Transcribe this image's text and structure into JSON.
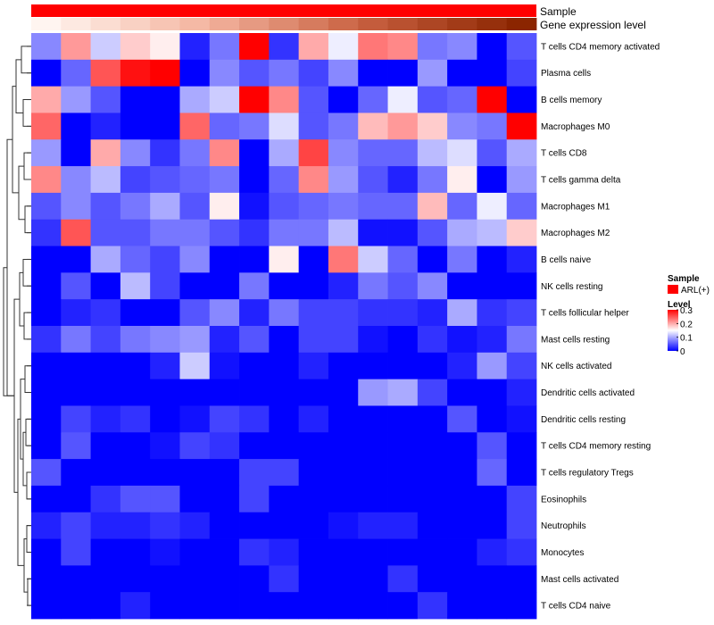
{
  "chart_data": {
    "type": "heatmap",
    "annotation_tracks": [
      {
        "name": "Sample",
        "kind": "categorical",
        "color": "#ff0000"
      },
      {
        "name": "Gene expression level",
        "kind": "gradient",
        "colors": [
          "#fff5f0",
          "#f4b5a0",
          "#c86040",
          "#8b2500"
        ]
      }
    ],
    "rows": [
      "T cells CD4 memory activated",
      "Plasma cells",
      "B cells memory",
      "Macrophages M0",
      "T cells CD8",
      "T cells gamma delta",
      "Macrophages M1",
      "Macrophages M2",
      "B cells naive",
      "NK cells resting",
      "T cells follicular helper",
      "Mast cells resting",
      "NK cells activated",
      "Dendritic cells activated",
      "Dendritic cells resting",
      "T cells CD4 memory resting",
      "T cells regulatory  Tregs",
      "Eosinophils",
      "Neutrophils",
      "Monocytes",
      "Mast cells activated",
      "T cells CD4 naive"
    ],
    "values": [
      [
        0.08,
        0.21,
        0.12,
        0.18,
        0.16,
        0.02,
        0.07,
        0.3,
        0.03,
        0.2,
        0.14,
        0.23,
        0.22,
        0.07,
        0.08,
        0.0,
        0.05
      ],
      [
        0.0,
        0.06,
        0.25,
        0.29,
        0.3,
        0.0,
        0.08,
        0.05,
        0.07,
        0.04,
        0.08,
        0.0,
        0.0,
        0.09,
        0.0,
        0.0,
        0.04
      ],
      [
        0.2,
        0.09,
        0.05,
        0.0,
        0.0,
        0.1,
        0.12,
        0.3,
        0.22,
        0.05,
        0.0,
        0.06,
        0.14,
        0.05,
        0.06,
        0.3,
        0.0
      ],
      [
        0.24,
        0.0,
        0.02,
        0.0,
        0.0,
        0.24,
        0.06,
        0.07,
        0.13,
        0.05,
        0.07,
        0.19,
        0.21,
        0.18,
        0.08,
        0.07,
        0.3
      ],
      [
        0.09,
        0.0,
        0.2,
        0.08,
        0.03,
        0.07,
        0.22,
        0.0,
        0.1,
        0.26,
        0.08,
        0.06,
        0.06,
        0.11,
        0.13,
        0.05,
        0.1
      ],
      [
        0.22,
        0.08,
        0.11,
        0.04,
        0.05,
        0.06,
        0.07,
        0.0,
        0.06,
        0.22,
        0.09,
        0.05,
        0.02,
        0.07,
        0.16,
        0.0,
        0.09
      ],
      [
        0.05,
        0.08,
        0.05,
        0.07,
        0.1,
        0.05,
        0.16,
        0.01,
        0.05,
        0.06,
        0.07,
        0.06,
        0.06,
        0.19,
        0.06,
        0.14,
        0.06
      ],
      [
        0.03,
        0.25,
        0.05,
        0.05,
        0.07,
        0.07,
        0.05,
        0.03,
        0.07,
        0.07,
        0.11,
        0.01,
        0.01,
        0.05,
        0.1,
        0.11,
        0.18
      ],
      [
        0.0,
        0.0,
        0.1,
        0.06,
        0.04,
        0.08,
        0.0,
        0.0,
        0.16,
        0.0,
        0.23,
        0.12,
        0.06,
        0.0,
        0.07,
        0.0,
        0.02
      ],
      [
        0.0,
        0.05,
        0.0,
        0.11,
        0.04,
        0.0,
        0.0,
        0.07,
        0.0,
        0.0,
        0.02,
        0.07,
        0.05,
        0.08,
        0.0,
        0.0,
        0.0
      ],
      [
        0.0,
        0.02,
        0.03,
        0.0,
        0.0,
        0.05,
        0.08,
        0.02,
        0.07,
        0.04,
        0.04,
        0.03,
        0.03,
        0.02,
        0.1,
        0.03,
        0.04
      ],
      [
        0.03,
        0.07,
        0.04,
        0.07,
        0.08,
        0.09,
        0.02,
        0.05,
        0.0,
        0.04,
        0.04,
        0.01,
        0.0,
        0.03,
        0.01,
        0.02,
        0.07
      ],
      [
        0.0,
        0.0,
        0.0,
        0.0,
        0.02,
        0.12,
        0.01,
        0.0,
        0.0,
        0.02,
        0.0,
        0.0,
        0.0,
        0.0,
        0.02,
        0.09,
        0.04
      ],
      [
        0.0,
        0.0,
        0.0,
        0.0,
        0.0,
        0.0,
        0.0,
        0.0,
        0.0,
        0.0,
        0.0,
        0.09,
        0.1,
        0.04,
        0.0,
        0.0,
        0.02
      ],
      [
        0.0,
        0.04,
        0.02,
        0.03,
        0.0,
        0.01,
        0.04,
        0.03,
        0.0,
        0.02,
        0.0,
        0.0,
        0.0,
        0.0,
        0.05,
        0.0,
        0.01
      ],
      [
        0.0,
        0.05,
        0.0,
        0.0,
        0.01,
        0.04,
        0.03,
        0.0,
        0.0,
        0.0,
        0.0,
        0.0,
        0.0,
        0.0,
        0.0,
        0.05,
        0.0
      ],
      [
        0.05,
        0.0,
        0.0,
        0.0,
        0.0,
        0.0,
        0.0,
        0.04,
        0.04,
        0.0,
        0.0,
        0.0,
        0.0,
        0.0,
        0.0,
        0.06,
        0.0
      ],
      [
        0.0,
        0.0,
        0.03,
        0.05,
        0.05,
        0.0,
        0.0,
        0.04,
        0.0,
        0.0,
        0.0,
        0.0,
        0.0,
        0.0,
        0.0,
        0.0,
        0.04
      ],
      [
        0.02,
        0.04,
        0.02,
        0.02,
        0.03,
        0.02,
        0.0,
        0.0,
        0.0,
        0.0,
        0.01,
        0.02,
        0.02,
        0.0,
        0.0,
        0.0,
        0.04
      ],
      [
        0.0,
        0.04,
        0.0,
        0.0,
        0.01,
        0.0,
        0.0,
        0.03,
        0.02,
        0.0,
        0.0,
        0.0,
        0.0,
        0.0,
        0.0,
        0.02,
        0.03
      ],
      [
        0.0,
        0.0,
        0.0,
        0.0,
        0.0,
        0.0,
        0.0,
        0.0,
        0.03,
        0.0,
        0.0,
        0.0,
        0.03,
        0.0,
        0.0,
        0.0,
        0.0
      ],
      [
        0.0,
        0.0,
        0.0,
        0.02,
        0.0,
        0.0,
        0.0,
        0.0,
        0.0,
        0.0,
        0.0,
        0.0,
        0.0,
        0.03,
        0.0,
        0.0,
        0.0
      ]
    ],
    "color_scale": {
      "min": 0,
      "max": 0.3,
      "colors": [
        "#0000ff",
        "#ffffff",
        "#ff0000"
      ]
    },
    "legend": {
      "placement": "right",
      "sample_title": "Sample",
      "sample_entry": "ARL(+)",
      "level_title": "Level",
      "level_ticks": [
        "0.3",
        "0.2",
        "0.1",
        "0"
      ]
    }
  }
}
